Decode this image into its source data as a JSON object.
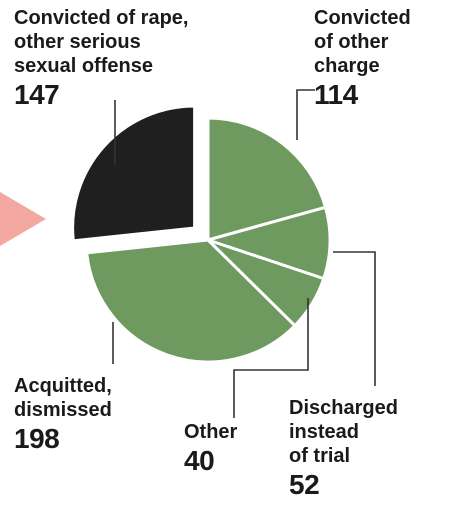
{
  "chart_data": {
    "type": "pie",
    "title": "",
    "slices": [
      {
        "label": "Convicted of rape, other serious sexual offense",
        "value": 147,
        "value_text": "147",
        "color": "#1f1f1f",
        "exploded": true
      },
      {
        "label": "Convicted of other charge",
        "value": 114,
        "value_text": "114",
        "color": "#6e9a5f",
        "exploded": false
      },
      {
        "label": "Discharged instead of trial",
        "value": 52,
        "value_text": "52",
        "color": "#6e9a5f",
        "exploded": false
      },
      {
        "label": "Other",
        "value": 40,
        "value_text": "40",
        "color": "#6e9a5f",
        "exploded": false
      },
      {
        "label": "Acquitted, dismissed",
        "value": 198,
        "value_text": "198",
        "color": "#6e9a5f",
        "exploded": false
      }
    ]
  },
  "labels": {
    "rape_line1": "Convicted of rape,",
    "rape_line2": "other serious",
    "rape_line3": "sexual offense",
    "rape_value": "147",
    "other_charge_line1": "Convicted",
    "other_charge_line2": "of other",
    "other_charge_line3": "charge",
    "other_charge_value": "114",
    "discharged_line1": "Discharged",
    "discharged_line2": "instead",
    "discharged_line3": "of trial",
    "discharged_value": "52",
    "other_line1": "Other",
    "other_value": "40",
    "acquitted_line1": "Acquitted,",
    "acquitted_line2": "dismissed",
    "acquitted_value": "198"
  },
  "colors": {
    "accent_arrow": "#f2a7a0",
    "slice_stroke": "#ffffff"
  }
}
